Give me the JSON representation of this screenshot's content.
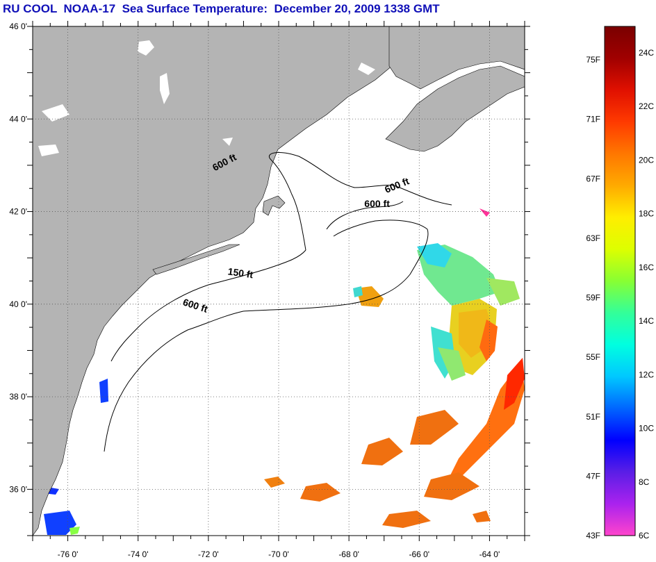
{
  "title": "RU COOL  NOAA-17  Sea Surface Temperature:  December 20, 2009 1338 GMT",
  "map": {
    "lon_range": [
      -77,
      -63
    ],
    "lat_range": [
      35,
      46
    ],
    "lon_ticks": [
      {
        "value": -76,
        "label": "-76 0'"
      },
      {
        "value": -74,
        "label": "-74 0'"
      },
      {
        "value": -72,
        "label": "-72 0'"
      },
      {
        "value": -70,
        "label": "-70 0'"
      },
      {
        "value": -68,
        "label": "-68 0'"
      },
      {
        "value": -66,
        "label": "-66 0'"
      },
      {
        "value": -64,
        "label": "-64 0'"
      }
    ],
    "lat_ticks": [
      {
        "value": 46,
        "label": "46 0'"
      },
      {
        "value": 44,
        "label": "44 0'"
      },
      {
        "value": 42,
        "label": "42 0'"
      },
      {
        "value": 40,
        "label": "40 0'"
      },
      {
        "value": 38,
        "label": "38 0'"
      },
      {
        "value": 36,
        "label": "36 0'"
      }
    ],
    "grid": true,
    "land_color": "#b4b4b4",
    "contour_labels": [
      {
        "text": "600 ft",
        "lon": -71.5,
        "lat": 43.0,
        "angle": 28
      },
      {
        "text": "600 ft",
        "lon": -66.6,
        "lat": 42.5,
        "angle": 22
      },
      {
        "text": "600 ft",
        "lon": -67.2,
        "lat": 42.1,
        "angle": 0
      },
      {
        "text": "150 ft",
        "lon": -71.1,
        "lat": 40.6,
        "angle": -8
      },
      {
        "text": "600 ft",
        "lon": -72.4,
        "lat": 39.9,
        "angle": -18
      }
    ]
  },
  "colorbar": {
    "f_labels": [
      "75F",
      "71F",
      "67F",
      "63F",
      "59F",
      "55F",
      "51F",
      "47F",
      "43F"
    ],
    "c_labels": [
      "24C",
      "22C",
      "20C",
      "18C",
      "16C",
      "14C",
      "12C",
      "10C",
      "8C",
      "6C"
    ],
    "gradient": [
      "#ff44cc",
      "#aa22ee",
      "#5a1ee6",
      "#0000ff",
      "#0066ff",
      "#00c8ff",
      "#00ffe0",
      "#33ff99",
      "#88ff33",
      "#ddff00",
      "#ffee00",
      "#ffaa00",
      "#ff7700",
      "#ff3a00",
      "#e01000",
      "#a00000",
      "#7a0000"
    ]
  }
}
